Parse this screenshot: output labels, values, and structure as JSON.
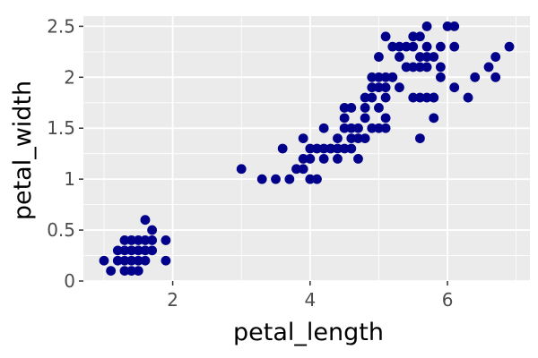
{
  "chart_data": {
    "type": "scatter",
    "xlabel": "petal_length",
    "ylabel": "petal_width",
    "xlim": [
      0.7,
      7.2
    ],
    "ylim": [
      0,
      2.6
    ],
    "x_ticks": [
      2,
      4,
      6
    ],
    "x_tick_labels": [
      "2",
      "4",
      "6"
    ],
    "y_ticks": [
      0,
      0.5,
      1,
      1.5,
      2,
      2.5
    ],
    "y_tick_labels": [
      "0",
      "0.5",
      "1",
      "1.5",
      "2",
      "2.5"
    ],
    "x_minor_ticks": [
      1,
      3,
      5,
      7
    ],
    "y_minor_ticks": [
      0.25,
      0.75,
      1.25,
      1.75,
      2.25
    ],
    "grid": true,
    "colors": {
      "points": "#00008b",
      "panel": "#ebebeb",
      "grid": "#ffffff"
    },
    "points": [
      [
        1.4,
        0.2
      ],
      [
        1.3,
        0.2
      ],
      [
        1.5,
        0.2
      ],
      [
        1.7,
        0.4
      ],
      [
        1.4,
        0.3
      ],
      [
        1.5,
        0.1
      ],
      [
        1.6,
        0.2
      ],
      [
        1.1,
        0.1
      ],
      [
        1.2,
        0.2
      ],
      [
        1.0,
        0.2
      ],
      [
        1.9,
        0.2
      ],
      [
        1.9,
        0.4
      ],
      [
        1.6,
        0.6
      ],
      [
        1.7,
        0.5
      ],
      [
        1.3,
        0.3
      ],
      [
        1.3,
        0.4
      ],
      [
        1.4,
        0.1
      ],
      [
        1.6,
        0.4
      ],
      [
        1.5,
        0.3
      ],
      [
        1.2,
        0.3
      ],
      [
        1.7,
        0.3
      ],
      [
        1.5,
        0.4
      ],
      [
        1.4,
        0.4
      ],
      [
        1.6,
        0.3
      ],
      [
        1.3,
        0.1
      ],
      [
        3.0,
        1.1
      ],
      [
        3.3,
        1.0
      ],
      [
        3.5,
        1.0
      ],
      [
        3.6,
        1.3
      ],
      [
        3.7,
        1.0
      ],
      [
        3.8,
        1.1
      ],
      [
        3.9,
        1.1
      ],
      [
        3.9,
        1.2
      ],
      [
        3.9,
        1.4
      ],
      [
        4.0,
        1.0
      ],
      [
        4.0,
        1.2
      ],
      [
        4.0,
        1.3
      ],
      [
        4.1,
        1.0
      ],
      [
        4.1,
        1.3
      ],
      [
        4.2,
        1.2
      ],
      [
        4.2,
        1.3
      ],
      [
        4.2,
        1.5
      ],
      [
        4.3,
        1.3
      ],
      [
        4.4,
        1.2
      ],
      [
        4.4,
        1.3
      ],
      [
        4.4,
        1.4
      ],
      [
        4.5,
        1.3
      ],
      [
        4.5,
        1.5
      ],
      [
        4.5,
        1.6
      ],
      [
        4.5,
        1.7
      ],
      [
        4.6,
        1.3
      ],
      [
        4.6,
        1.4
      ],
      [
        4.6,
        1.5
      ],
      [
        4.7,
        1.2
      ],
      [
        4.7,
        1.4
      ],
      [
        4.7,
        1.5
      ],
      [
        4.8,
        1.4
      ],
      [
        4.8,
        1.8
      ],
      [
        4.9,
        1.5
      ],
      [
        5.0,
        1.7
      ],
      [
        4.8,
        1.6
      ],
      [
        4.9,
        1.8
      ],
      [
        5.0,
        1.5
      ],
      [
        5.1,
        1.6
      ],
      [
        5.1,
        1.5
      ],
      [
        5.0,
        2.0
      ],
      [
        5.1,
        1.9
      ],
      [
        5.1,
        2.0
      ],
      [
        5.1,
        2.4
      ],
      [
        5.2,
        2.0
      ],
      [
        5.2,
        2.3
      ],
      [
        5.3,
        1.9
      ],
      [
        5.3,
        2.3
      ],
      [
        5.4,
        2.1
      ],
      [
        5.4,
        2.3
      ],
      [
        5.5,
        1.8
      ],
      [
        5.5,
        2.1
      ],
      [
        5.6,
        1.4
      ],
      [
        5.6,
        1.8
      ],
      [
        5.6,
        2.2
      ],
      [
        5.6,
        2.4
      ],
      [
        5.7,
        2.1
      ],
      [
        5.7,
        2.3
      ],
      [
        5.7,
        2.5
      ],
      [
        5.8,
        1.8
      ],
      [
        5.8,
        2.2
      ],
      [
        5.9,
        2.1
      ],
      [
        5.9,
        2.3
      ],
      [
        6.0,
        2.5
      ],
      [
        6.1,
        1.9
      ],
      [
        6.1,
        2.3
      ],
      [
        6.1,
        2.5
      ],
      [
        6.3,
        1.8
      ],
      [
        6.4,
        2.0
      ],
      [
        6.6,
        2.1
      ],
      [
        6.7,
        2.2
      ],
      [
        6.7,
        2.0
      ],
      [
        6.9,
        2.3
      ],
      [
        5.0,
        1.9
      ],
      [
        5.1,
        1.8
      ],
      [
        5.2,
        2.0
      ],
      [
        5.5,
        2.3
      ],
      [
        5.8,
        1.6
      ],
      [
        5.6,
        2.1
      ],
      [
        5.3,
        2.2
      ],
      [
        5.8,
        1.8
      ],
      [
        5.9,
        2.0
      ],
      [
        5.7,
        2.2
      ],
      [
        5.5,
        2.4
      ],
      [
        5.7,
        1.8
      ],
      [
        4.9,
        2.0
      ],
      [
        5.0,
        2.2
      ],
      [
        4.9,
        1.9
      ],
      [
        4.6,
        1.7
      ],
      [
        4.8,
        1.7
      ]
    ]
  }
}
